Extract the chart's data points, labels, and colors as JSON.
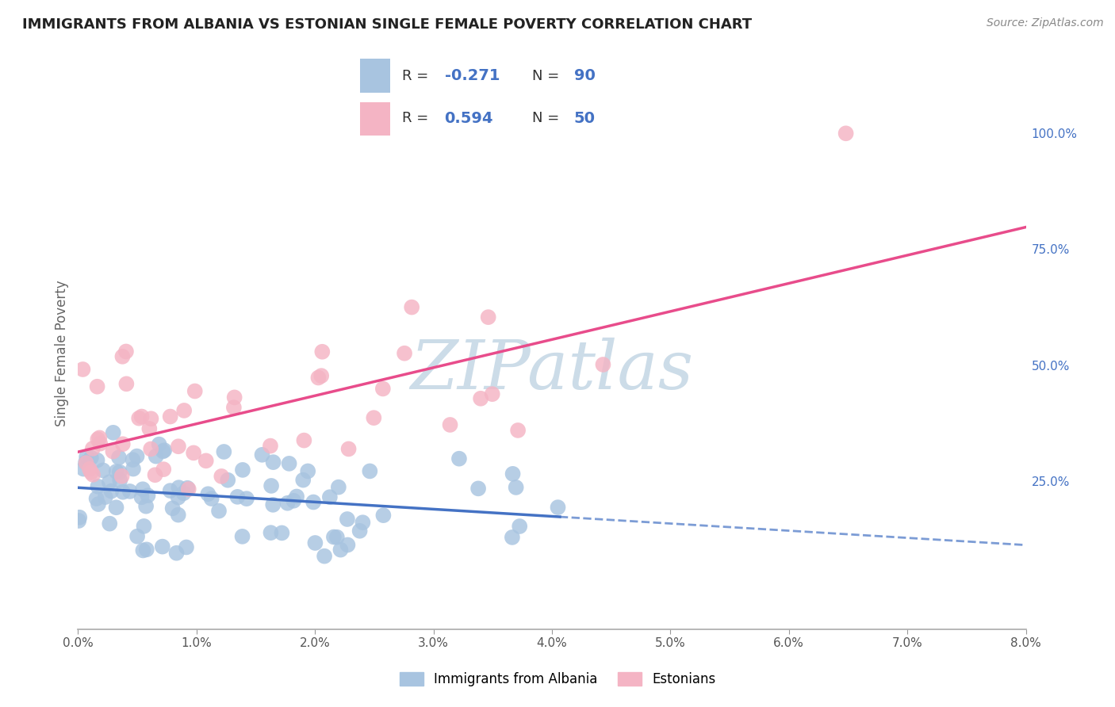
{
  "title": "IMMIGRANTS FROM ALBANIA VS ESTONIAN SINGLE FEMALE POVERTY CORRELATION CHART",
  "source": "Source: ZipAtlas.com",
  "ylabel": "Single Female Poverty",
  "xlim": [
    0.0,
    0.08
  ],
  "ylim": [
    -0.07,
    1.12
  ],
  "xtick_vals": [
    0.0,
    0.01,
    0.02,
    0.03,
    0.04,
    0.05,
    0.06,
    0.07,
    0.08
  ],
  "ytick_vals_right": [
    0.25,
    0.5,
    0.75,
    1.0
  ],
  "ytick_labels_right": [
    "25.0%",
    "50.0%",
    "75.0%",
    "100.0%"
  ],
  "albania_N": 90,
  "estonian_N": 50,
  "albania_color": "#a8c4e0",
  "estonian_color": "#f4b4c4",
  "albania_line_color": "#4472c4",
  "estonian_line_color": "#e84c8b",
  "watermark_color": "#ccdce8",
  "legend_value_color": "#4472c4",
  "background_color": "#ffffff",
  "grid_color": "#dddddd"
}
